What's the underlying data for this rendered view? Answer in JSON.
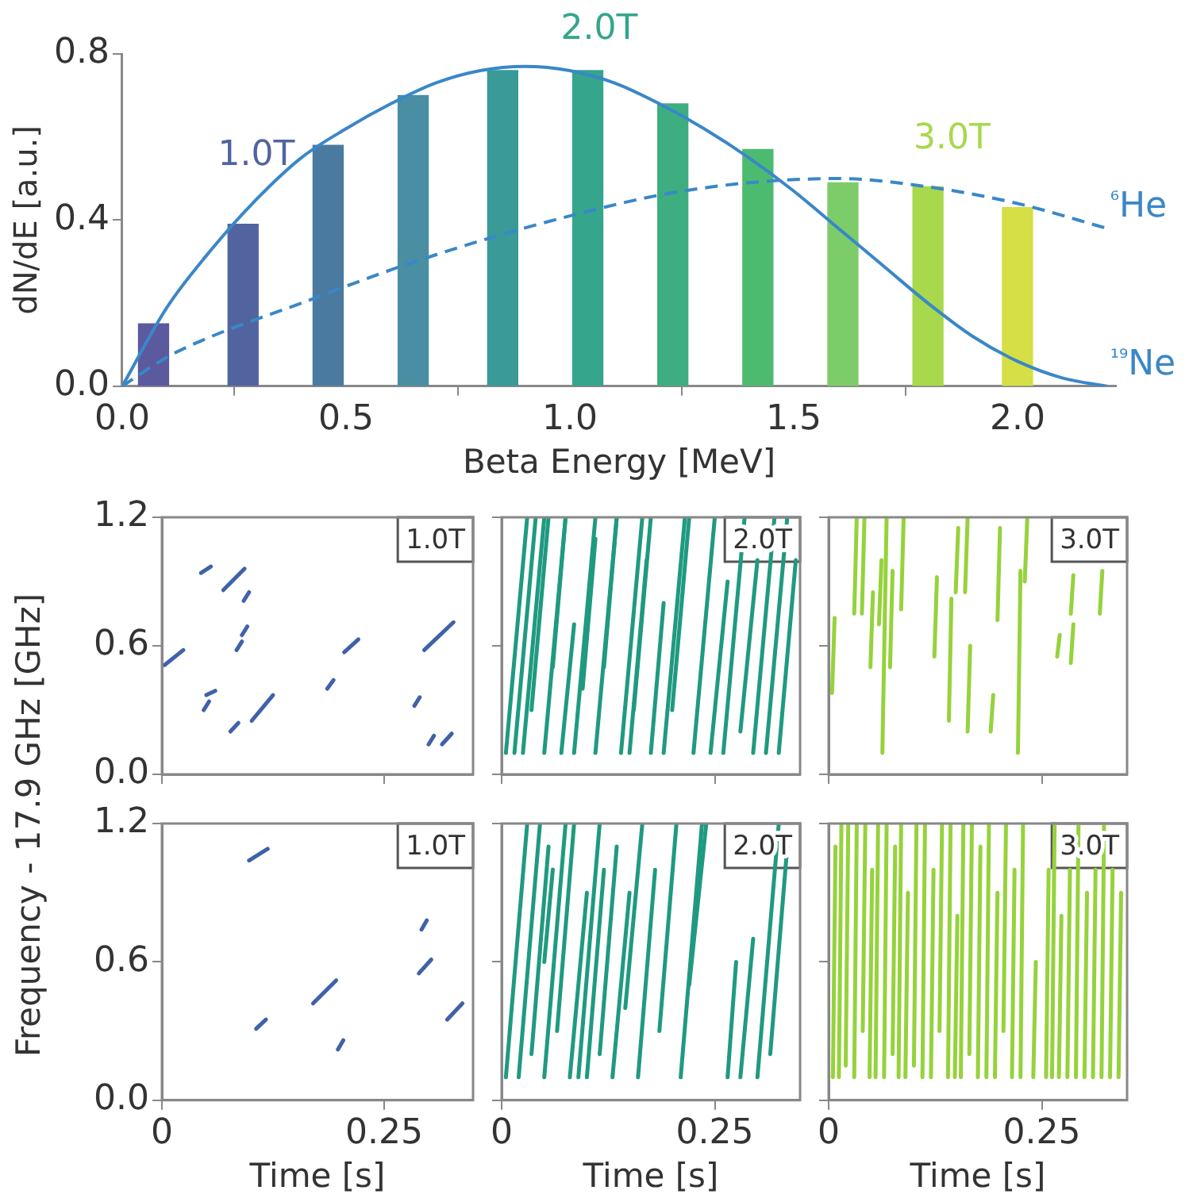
{
  "chart_data": [
    {
      "type": "bar",
      "xlabel": "Beta Energy [MeV]",
      "ylabel": "dN/dE [a.u.]",
      "xlim": [
        0,
        2.22
      ],
      "ylim": [
        0,
        0.8
      ],
      "xticks": [
        {
          "value": 0,
          "label": "0.0"
        },
        0.5,
        {
          "value": 1,
          "label": "1.0"
        },
        1.5,
        {
          "value": 2,
          "label": "2.0"
        }
      ],
      "yticks": [
        {
          "value": 0,
          "label": "0.0"
        },
        0.4,
        0.8
      ],
      "annotations": [
        "1.0T",
        "2.0T",
        "3.0T"
      ],
      "series": [
        {
          "x": [
            0.07,
            0.27,
            0.46,
            0.65,
            0.85,
            1.04,
            1.23,
            1.42,
            1.61,
            1.8,
            2.0
          ],
          "values": [
            0.15,
            0.39,
            0.58,
            0.7,
            0.76,
            0.76,
            0.68,
            0.57,
            0.49,
            0.48,
            0.43
          ],
          "colors": [
            "#5b5a9e",
            "#52649f",
            "#4a7aa0",
            "#4a8ea3",
            "#3a9a98",
            "#35a58c",
            "#3eae80",
            "#4cbb70",
            "#7dcc6a",
            "#a8d84c",
            "#d6df45"
          ]
        },
        {
          "type": "line",
          "name": "¹⁹Ne",
          "color": "#3a87c8",
          "line_style": "solid",
          "x": [
            0,
            0.1,
            0.2,
            0.3,
            0.4,
            0.5,
            0.6,
            0.7,
            0.8,
            0.9,
            1.0,
            1.1,
            1.2,
            1.3,
            1.4,
            1.5,
            1.6,
            1.7,
            1.8,
            1.9,
            2.0,
            2.1,
            2.2
          ],
          "values": [
            0,
            0.19,
            0.33,
            0.45,
            0.55,
            0.62,
            0.68,
            0.73,
            0.76,
            0.77,
            0.76,
            0.73,
            0.68,
            0.62,
            0.55,
            0.47,
            0.38,
            0.29,
            0.2,
            0.12,
            0.06,
            0.02,
            0
          ]
        },
        {
          "type": "line",
          "name": "⁶He",
          "color": "#3a87c8",
          "line_style": "dashed",
          "x": [
            0,
            0.1,
            0.2,
            0.4,
            0.6,
            0.8,
            1.0,
            1.2,
            1.4,
            1.6,
            1.8,
            2.0,
            2.2
          ],
          "values": [
            0,
            0.07,
            0.12,
            0.2,
            0.28,
            0.35,
            0.41,
            0.46,
            0.49,
            0.5,
            0.48,
            0.44,
            0.38
          ]
        }
      ]
    },
    {
      "type": "line",
      "ylabel": "Frequency - 17.9 GHz [GHz]",
      "color": "#3f62a8",
      "xlim": [
        0,
        0.35
      ],
      "ylim": [
        0,
        1.2
      ],
      "xticks": [
        {
          "value": 0,
          "label": null
        },
        {
          "value": 0.25,
          "label": null
        }
      ],
      "yticks": [
        {
          "value": 0,
          "label": "0.0"
        },
        0.6,
        1.2
      ],
      "tick_labels": "y",
      "annotations": [
        "1.0T"
      ],
      "series": [
        {
          "x": [
            0.003,
            0.024
          ],
          "values": [
            0.51,
            0.58
          ]
        },
        {
          "x": [
            0.044,
            0.055
          ],
          "values": [
            0.94,
            0.97
          ]
        },
        {
          "x": [
            0.069,
            0.093
          ],
          "values": [
            0.86,
            0.96
          ]
        },
        {
          "x": [
            0.092,
            0.098
          ],
          "values": [
            0.81,
            0.85
          ]
        },
        {
          "x": [
            0.084,
            0.09
          ],
          "values": [
            0.58,
            0.62
          ]
        },
        {
          "x": [
            0.09,
            0.096
          ],
          "values": [
            0.65,
            0.69
          ]
        },
        {
          "x": [
            0.05,
            0.06
          ],
          "values": [
            0.37,
            0.39
          ]
        },
        {
          "x": [
            0.047,
            0.053
          ],
          "values": [
            0.3,
            0.34
          ]
        },
        {
          "x": [
            0.077,
            0.086
          ],
          "values": [
            0.2,
            0.24
          ]
        },
        {
          "x": [
            0.101,
            0.125
          ],
          "values": [
            0.25,
            0.37
          ]
        },
        {
          "x": [
            0.205,
            0.221
          ],
          "values": [
            0.57,
            0.63
          ]
        },
        {
          "x": [
            0.186,
            0.193
          ],
          "values": [
            0.4,
            0.44
          ]
        },
        {
          "x": [
            0.295,
            0.328
          ],
          "values": [
            0.58,
            0.71
          ]
        },
        {
          "x": [
            0.284,
            0.29
          ],
          "values": [
            0.32,
            0.36
          ]
        },
        {
          "x": [
            0.3,
            0.306
          ],
          "values": [
            0.14,
            0.18
          ]
        },
        {
          "x": [
            0.315,
            0.326
          ],
          "values": [
            0.14,
            0.19
          ]
        }
      ]
    },
    {
      "type": "line",
      "color": "#1f9a80",
      "xlim": [
        0,
        0.35
      ],
      "ylim": [
        0,
        1.2
      ],
      "xticks": [
        {
          "value": 0,
          "label": null
        },
        {
          "value": 0.25,
          "label": null
        }
      ],
      "yticks": [
        {
          "value": 0,
          "label": null
        },
        {
          "value": 0.6,
          "label": null
        },
        {
          "value": 1.2,
          "label": null
        }
      ],
      "tick_labels": false,
      "annotations": [
        "2.0T"
      ],
      "series": [
        {
          "x": [
            0.005,
            0.03
          ],
          "values": [
            0.1,
            1.2
          ]
        },
        {
          "x": [
            0.015,
            0.04
          ],
          "values": [
            0.1,
            1.2
          ]
        },
        {
          "x": [
            0.025,
            0.05
          ],
          "values": [
            0.1,
            1.2
          ]
        },
        {
          "x": [
            0.035,
            0.055
          ],
          "values": [
            0.3,
            1.2
          ]
        },
        {
          "x": [
            0.05,
            0.075
          ],
          "values": [
            0.1,
            1.2
          ]
        },
        {
          "x": [
            0.06,
            0.075
          ],
          "values": [
            0.5,
            1.2
          ]
        },
        {
          "x": [
            0.07,
            0.085
          ],
          "values": [
            0.1,
            0.7
          ]
        },
        {
          "x": [
            0.085,
            0.11
          ],
          "values": [
            0.1,
            1.2
          ]
        },
        {
          "x": [
            0.095,
            0.11
          ],
          "values": [
            0.4,
            1.1
          ]
        },
        {
          "x": [
            0.11,
            0.135
          ],
          "values": [
            0.1,
            1.2
          ]
        },
        {
          "x": [
            0.12,
            0.135
          ],
          "values": [
            0.5,
            1.2
          ]
        },
        {
          "x": [
            0.14,
            0.165
          ],
          "values": [
            0.1,
            1.2
          ]
        },
        {
          "x": [
            0.15,
            0.17
          ],
          "values": [
            0.1,
            1.0
          ]
        },
        {
          "x": [
            0.155,
            0.175
          ],
          "values": [
            0.3,
            1.2
          ]
        },
        {
          "x": [
            0.175,
            0.19
          ],
          "values": [
            0.1,
            0.8
          ]
        },
        {
          "x": [
            0.19,
            0.215
          ],
          "values": [
            0.1,
            1.2
          ]
        },
        {
          "x": [
            0.2,
            0.22
          ],
          "values": [
            0.3,
            1.2
          ]
        },
        {
          "x": [
            0.225,
            0.25
          ],
          "values": [
            0.1,
            1.2
          ]
        },
        {
          "x": [
            0.245,
            0.265
          ],
          "values": [
            0.1,
            0.9
          ]
        },
        {
          "x": [
            0.26,
            0.285
          ],
          "values": [
            0.1,
            1.2
          ]
        },
        {
          "x": [
            0.28,
            0.3
          ],
          "values": [
            0.2,
            1.0
          ]
        },
        {
          "x": [
            0.295,
            0.32
          ],
          "values": [
            0.1,
            1.2
          ]
        },
        {
          "x": [
            0.31,
            0.335
          ],
          "values": [
            0.1,
            1.2
          ]
        },
        {
          "x": [
            0.325,
            0.345
          ],
          "values": [
            0.1,
            1.0
          ]
        }
      ]
    },
    {
      "type": "line",
      "color": "#96d23c",
      "xlim": [
        0,
        0.35
      ],
      "ylim": [
        0,
        1.2
      ],
      "xticks": [
        {
          "value": 0,
          "label": null
        },
        {
          "value": 0.25,
          "label": null
        }
      ],
      "yticks": [
        {
          "value": 0,
          "label": null
        },
        {
          "value": 0.6,
          "label": null
        },
        {
          "value": 1.2,
          "label": null
        }
      ],
      "tick_labels": false,
      "annotations": [
        "3.0T"
      ],
      "series": [
        {
          "x": [
            0.004,
            0.007
          ],
          "values": [
            0.38,
            0.73
          ]
        },
        {
          "x": [
            0.03,
            0.033
          ],
          "values": [
            0.75,
            1.2
          ]
        },
        {
          "x": [
            0.039,
            0.042
          ],
          "values": [
            0.75,
            1.2
          ]
        },
        {
          "x": [
            0.049,
            0.052
          ],
          "values": [
            0.5,
            0.85
          ]
        },
        {
          "x": [
            0.059,
            0.062
          ],
          "values": [
            0.7,
            1.0
          ]
        },
        {
          "x": [
            0.063,
            0.068
          ],
          "values": [
            0.1,
            1.2
          ]
        },
        {
          "x": [
            0.072,
            0.075
          ],
          "values": [
            0.5,
            0.95
          ]
        },
        {
          "x": [
            0.085,
            0.088
          ],
          "values": [
            0.77,
            1.2
          ]
        },
        {
          "x": [
            0.124,
            0.127
          ],
          "values": [
            0.55,
            0.92
          ]
        },
        {
          "x": [
            0.141,
            0.144
          ],
          "values": [
            0.25,
            0.82
          ]
        },
        {
          "x": [
            0.149,
            0.152
          ],
          "values": [
            0.85,
            1.15
          ]
        },
        {
          "x": [
            0.16,
            0.163
          ],
          "values": [
            0.85,
            1.2
          ]
        },
        {
          "x": [
            0.163,
            0.166
          ],
          "values": [
            0.2,
            0.6
          ]
        },
        {
          "x": [
            0.19,
            0.193
          ],
          "values": [
            0.2,
            0.37
          ]
        },
        {
          "x": [
            0.198,
            0.201
          ],
          "values": [
            0.72,
            1.15
          ]
        },
        {
          "x": [
            0.222,
            0.225
          ],
          "values": [
            0.1,
            0.95
          ]
        },
        {
          "x": [
            0.23,
            0.233
          ],
          "values": [
            0.9,
            1.2
          ]
        },
        {
          "x": [
            0.268,
            0.271
          ],
          "values": [
            0.55,
            0.65
          ]
        },
        {
          "x": [
            0.284,
            0.287
          ],
          "values": [
            0.75,
            0.93
          ]
        },
        {
          "x": [
            0.284,
            0.287
          ],
          "values": [
            0.52,
            0.7
          ]
        },
        {
          "x": [
            0.318,
            0.321
          ],
          "values": [
            0.75,
            0.95
          ]
        }
      ]
    },
    {
      "type": "line",
      "xlabel": "Time [s]",
      "color": "#3f62a8",
      "xlim": [
        0,
        0.35
      ],
      "ylim": [
        0,
        1.2
      ],
      "xticks": [
        0,
        0.25
      ],
      "yticks": [
        {
          "value": 0,
          "label": "0.0"
        },
        0.6,
        1.2
      ],
      "annotations": [
        "1.0T"
      ],
      "series": [
        {
          "x": [
            0.098,
            0.119
          ],
          "values": [
            1.04,
            1.09
          ]
        },
        {
          "x": [
            0.106,
            0.117
          ],
          "values": [
            0.31,
            0.35
          ]
        },
        {
          "x": [
            0.17,
            0.196
          ],
          "values": [
            0.42,
            0.52
          ]
        },
        {
          "x": [
            0.198,
            0.204
          ],
          "values": [
            0.22,
            0.26
          ]
        },
        {
          "x": [
            0.292,
            0.298
          ],
          "values": [
            0.74,
            0.78
          ]
        },
        {
          "x": [
            0.289,
            0.303
          ],
          "values": [
            0.55,
            0.61
          ]
        },
        {
          "x": [
            0.321,
            0.338
          ],
          "values": [
            0.35,
            0.42
          ]
        }
      ]
    },
    {
      "type": "line",
      "xlabel": "Time [s]",
      "color": "#1f9a80",
      "xlim": [
        0,
        0.35
      ],
      "ylim": [
        0,
        1.2
      ],
      "xticks": [
        0,
        0.25
      ],
      "yticks": [
        {
          "value": 0,
          "label": null
        },
        {
          "value": 0.6,
          "label": null
        },
        {
          "value": 1.2,
          "label": null
        }
      ],
      "tick_labels": "x",
      "annotations": [
        "2.0T"
      ],
      "series": [
        {
          "x": [
            0.005,
            0.03
          ],
          "values": [
            0.1,
            1.2
          ]
        },
        {
          "x": [
            0.02,
            0.045
          ],
          "values": [
            0.1,
            1.2
          ]
        },
        {
          "x": [
            0.035,
            0.055
          ],
          "values": [
            0.2,
            1.1
          ]
        },
        {
          "x": [
            0.05,
            0.075
          ],
          "values": [
            0.1,
            1.2
          ]
        },
        {
          "x": [
            0.05,
            0.06
          ],
          "values": [
            0.6,
            1.0
          ]
        },
        {
          "x": [
            0.065,
            0.085
          ],
          "values": [
            0.3,
            1.2
          ]
        },
        {
          "x": [
            0.08,
            0.1
          ],
          "values": [
            0.1,
            0.9
          ]
        },
        {
          "x": [
            0.09,
            0.115
          ],
          "values": [
            0.1,
            1.2
          ]
        },
        {
          "x": [
            0.1,
            0.12
          ],
          "values": [
            0.1,
            1.0
          ]
        },
        {
          "x": [
            0.115,
            0.135
          ],
          "values": [
            0.2,
            1.1
          ]
        },
        {
          "x": [
            0.13,
            0.15
          ],
          "values": [
            0.1,
            0.9
          ]
        },
        {
          "x": [
            0.145,
            0.165
          ],
          "values": [
            0.4,
            1.2
          ]
        },
        {
          "x": [
            0.16,
            0.18
          ],
          "values": [
            0.1,
            1.0
          ]
        },
        {
          "x": [
            0.185,
            0.205
          ],
          "values": [
            0.3,
            1.2
          ]
        },
        {
          "x": [
            0.21,
            0.235
          ],
          "values": [
            0.1,
            1.2
          ]
        },
        {
          "x": [
            0.22,
            0.24
          ],
          "values": [
            0.5,
            1.2
          ]
        },
        {
          "x": [
            0.265,
            0.275
          ],
          "values": [
            0.1,
            0.6
          ]
        },
        {
          "x": [
            0.28,
            0.295
          ],
          "values": [
            0.1,
            0.7
          ]
        },
        {
          "x": [
            0.3,
            0.325
          ],
          "values": [
            0.1,
            1.2
          ]
        },
        {
          "x": [
            0.315,
            0.335
          ],
          "values": [
            0.2,
            1.1
          ]
        }
      ]
    },
    {
      "type": "line",
      "xlabel": "Time [s]",
      "color": "#96d23c",
      "xlim": [
        0,
        0.35
      ],
      "ylim": [
        0,
        1.2
      ],
      "xticks": [
        0,
        0.25
      ],
      "yticks": [
        {
          "value": 0,
          "label": null
        },
        {
          "value": 0.6,
          "label": null
        },
        {
          "value": 1.2,
          "label": null
        }
      ],
      "tick_labels": "x",
      "annotations": [
        "3.0T"
      ],
      "series": [
        {
          "x": [
            0.005,
            0.008
          ],
          "values": [
            0.1,
            1.1
          ]
        },
        {
          "x": [
            0.012,
            0.015
          ],
          "values": [
            0.1,
            1.2
          ]
        },
        {
          "x": [
            0.02,
            0.023
          ],
          "values": [
            0.15,
            1.2
          ]
        },
        {
          "x": [
            0.03,
            0.033
          ],
          "values": [
            0.1,
            1.2
          ]
        },
        {
          "x": [
            0.04,
            0.043
          ],
          "values": [
            0.3,
            1.2
          ]
        },
        {
          "x": [
            0.048,
            0.051
          ],
          "values": [
            0.1,
            1.0
          ]
        },
        {
          "x": [
            0.055,
            0.058
          ],
          "values": [
            0.1,
            1.2
          ]
        },
        {
          "x": [
            0.065,
            0.068
          ],
          "values": [
            0.1,
            1.2
          ]
        },
        {
          "x": [
            0.075,
            0.078
          ],
          "values": [
            0.2,
            1.1
          ]
        },
        {
          "x": [
            0.082,
            0.085
          ],
          "values": [
            0.1,
            1.2
          ]
        },
        {
          "x": [
            0.09,
            0.093
          ],
          "values": [
            0.1,
            0.9
          ]
        },
        {
          "x": [
            0.1,
            0.103
          ],
          "values": [
            0.15,
            1.2
          ]
        },
        {
          "x": [
            0.11,
            0.113
          ],
          "values": [
            0.1,
            1.2
          ]
        },
        {
          "x": [
            0.12,
            0.123
          ],
          "values": [
            0.1,
            1.0
          ]
        },
        {
          "x": [
            0.13,
            0.133
          ],
          "values": [
            0.3,
            1.2
          ]
        },
        {
          "x": [
            0.14,
            0.143
          ],
          "values": [
            0.1,
            1.2
          ]
        },
        {
          "x": [
            0.148,
            0.151
          ],
          "values": [
            0.1,
            0.8
          ]
        },
        {
          "x": [
            0.155,
            0.158
          ],
          "values": [
            0.1,
            1.2
          ]
        },
        {
          "x": [
            0.165,
            0.168
          ],
          "values": [
            0.2,
            1.2
          ]
        },
        {
          "x": [
            0.175,
            0.178
          ],
          "values": [
            0.1,
            1.1
          ]
        },
        {
          "x": [
            0.185,
            0.188
          ],
          "values": [
            0.1,
            1.2
          ]
        },
        {
          "x": [
            0.195,
            0.198
          ],
          "values": [
            0.1,
            0.9
          ]
        },
        {
          "x": [
            0.205,
            0.208
          ],
          "values": [
            0.3,
            1.2
          ]
        },
        {
          "x": [
            0.215,
            0.218
          ],
          "values": [
            0.1,
            1.0
          ]
        },
        {
          "x": [
            0.225,
            0.228
          ],
          "values": [
            0.1,
            1.2
          ]
        },
        {
          "x": [
            0.24,
            0.243
          ],
          "values": [
            0.1,
            0.6
          ]
        },
        {
          "x": [
            0.255,
            0.258
          ],
          "values": [
            0.1,
            1.0
          ]
        },
        {
          "x": [
            0.262,
            0.265
          ],
          "values": [
            0.1,
            1.2
          ]
        },
        {
          "x": [
            0.27,
            0.273
          ],
          "values": [
            0.1,
            0.8
          ]
        },
        {
          "x": [
            0.28,
            0.283
          ],
          "values": [
            0.1,
            1.0
          ]
        },
        {
          "x": [
            0.29,
            0.293
          ],
          "values": [
            0.1,
            1.2
          ]
        },
        {
          "x": [
            0.3,
            0.303
          ],
          "values": [
            0.1,
            0.9
          ]
        },
        {
          "x": [
            0.31,
            0.313
          ],
          "values": [
            0.1,
            1.0
          ]
        },
        {
          "x": [
            0.32,
            0.323
          ],
          "values": [
            0.1,
            1.2
          ]
        },
        {
          "x": [
            0.33,
            0.333
          ],
          "values": [
            0.1,
            1.0
          ]
        },
        {
          "x": [
            0.34,
            0.343
          ],
          "values": [
            0.1,
            0.9
          ]
        }
      ]
    }
  ]
}
